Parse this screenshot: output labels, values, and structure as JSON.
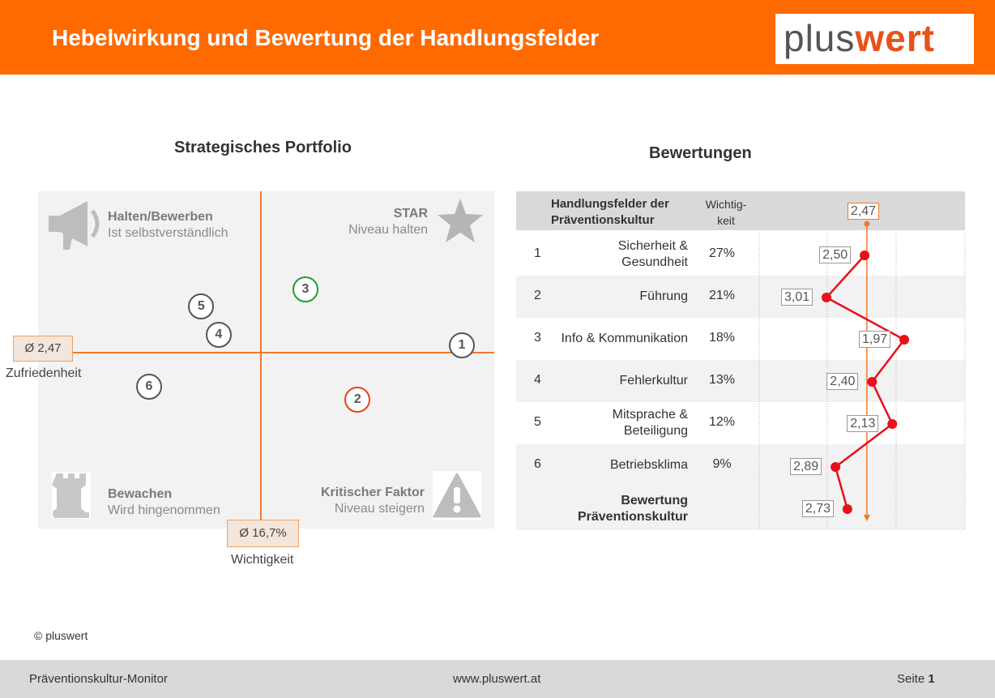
{
  "header": {
    "title": "Hebelwirkung und Bewertung der Handlungsfelder",
    "logo_part1": "plus",
    "logo_part2": "wert"
  },
  "portfolio": {
    "title": "Strategisches Portfolio",
    "quadrants": {
      "top_left": {
        "title": "Halten/Bewerben",
        "subtitle": "Ist selbstverständlich",
        "icon": "megaphone-icon"
      },
      "top_right": {
        "title": "STAR",
        "subtitle": "Niveau halten",
        "icon": "star-icon"
      },
      "bottom_left": {
        "title": "Bewachen",
        "subtitle": "Wird hingenommen",
        "icon": "rook-icon"
      },
      "bottom_right": {
        "title": "Kritischer Faktor",
        "subtitle": "Niveau steigern",
        "icon": "warning-icon"
      }
    },
    "y_ref_label": "Ø 2,47",
    "y_axis_label": "Zufriedenheit",
    "x_ref_label": "Ø 16,7%",
    "x_axis_label": "Wichtigkeit"
  },
  "chart_data": [
    {
      "type": "scatter",
      "title": "Strategisches Portfolio",
      "xlabel": "Wichtigkeit",
      "ylabel": "Zufriedenheit",
      "x_reference": 16.7,
      "y_reference": 2.47,
      "y_inverted": true,
      "points": [
        {
          "label": "1",
          "x": 27,
          "y": 2.5,
          "color": "#555555"
        },
        {
          "label": "2",
          "x": 21,
          "y": 3.01,
          "color": "#e8401a"
        },
        {
          "label": "3",
          "x": 18,
          "y": 1.97,
          "color": "#1e9e3a"
        },
        {
          "label": "4",
          "x": 13,
          "y": 2.4,
          "color": "#555555"
        },
        {
          "label": "5",
          "x": 12,
          "y": 2.13,
          "color": "#555555"
        },
        {
          "label": "6",
          "x": 9,
          "y": 2.89,
          "color": "#555555"
        }
      ]
    },
    {
      "type": "line",
      "title": "Bewertungen",
      "reference_value": 2.47,
      "reference_label": "2,47",
      "categories": [
        "Sicherheit & Gesundheit",
        "Führung",
        "Info & Kommunikation",
        "Fehlerkultur",
        "Mitsprache & Beteiligung",
        "Betriebsklima",
        "Bewertung Präventionskultur"
      ],
      "values": [
        2.5,
        3.01,
        1.97,
        2.4,
        2.13,
        2.89,
        2.73
      ],
      "value_labels": [
        "2,50",
        "3,01",
        "1,97",
        "2,40",
        "2,13",
        "2,89",
        "2,73"
      ],
      "line_color": "#e8101a",
      "reference_color": "#f07a2a",
      "x_inverted": true
    }
  ],
  "ratings": {
    "title": "Bewertungen",
    "header_name_line1": "Handlungsfelder der",
    "header_name_line2": "Präventionskultur",
    "header_weight_line1": "Wichtig-",
    "header_weight_line2": "keit",
    "header_avg": "2,47",
    "rows": [
      {
        "num": "1",
        "line1": "Sicherheit &",
        "line2": "Gesundheit",
        "weight": "27%",
        "value": "2,50"
      },
      {
        "num": "2",
        "line1": "Führung",
        "line2": "",
        "weight": "21%",
        "value": "3,01"
      },
      {
        "num": "3",
        "line1": "Info & Kommunikation",
        "line2": "",
        "weight": "18%",
        "value": "1,97"
      },
      {
        "num": "4",
        "line1": "Fehlerkultur",
        "line2": "",
        "weight": "13%",
        "value": "2,40"
      },
      {
        "num": "5",
        "line1": "Mitsprache &",
        "line2": "Beteiligung",
        "weight": "12%",
        "value": "2,13"
      },
      {
        "num": "6",
        "line1": "Betriebsklima",
        "line2": "",
        "weight": "9%",
        "value": "2,89"
      }
    ],
    "total": {
      "line1": "Bewertung",
      "line2": "Präventionskultur",
      "value": "2,73"
    }
  },
  "copyright": "© pluswert",
  "footer": {
    "left": "Präventionskultur-Monitor",
    "center": "www.pluswert.at",
    "right_prefix": "Seite ",
    "right_page": "1"
  }
}
